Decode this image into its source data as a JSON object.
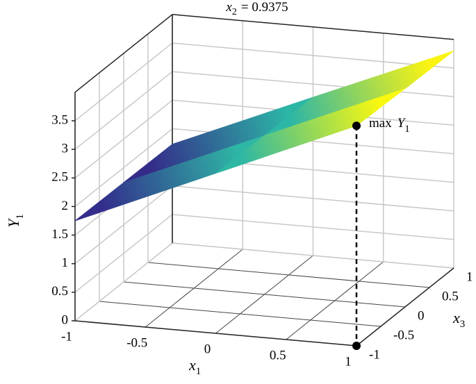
{
  "chart_data": {
    "type": "surface3d",
    "title": {
      "var": "x",
      "sub": "2",
      "rest": "= 0.9375"
    },
    "x_label": {
      "var": "x",
      "sub": "1"
    },
    "z_label": {
      "var": "x",
      "sub": "3"
    },
    "y_label": {
      "var": "Y",
      "sub": "1"
    },
    "x1": [
      -1,
      0,
      1
    ],
    "x3": [
      -1,
      0,
      1
    ],
    "values": [
      [
        1.75,
        2.8,
        3.85
      ],
      [
        1.74,
        2.78,
        3.82
      ],
      [
        1.73,
        2.77,
        3.8
      ]
    ],
    "colormap": [
      "#352a87",
      "#0f5cdd",
      "#1481d6",
      "#06a4ca",
      "#2eb7a4",
      "#87bf77",
      "#d1bb59",
      "#fec832",
      "#f9fb0e"
    ],
    "xlim": [
      -1,
      1
    ],
    "xticks": [
      -1,
      -0.5,
      0,
      0.5,
      1
    ],
    "x3lim": [
      -1,
      1
    ],
    "x3ticks": [
      -1,
      -0.5,
      0,
      0.5,
      1
    ],
    "ylim": [
      0,
      4
    ],
    "yticks": [
      0,
      0.5,
      1,
      1.5,
      2,
      2.5,
      3,
      3.5
    ],
    "grid": true,
    "annotation": {
      "text": "max",
      "var": "Y",
      "sub": "1",
      "x1": 1,
      "x3": -1,
      "y": 3.85
    }
  }
}
